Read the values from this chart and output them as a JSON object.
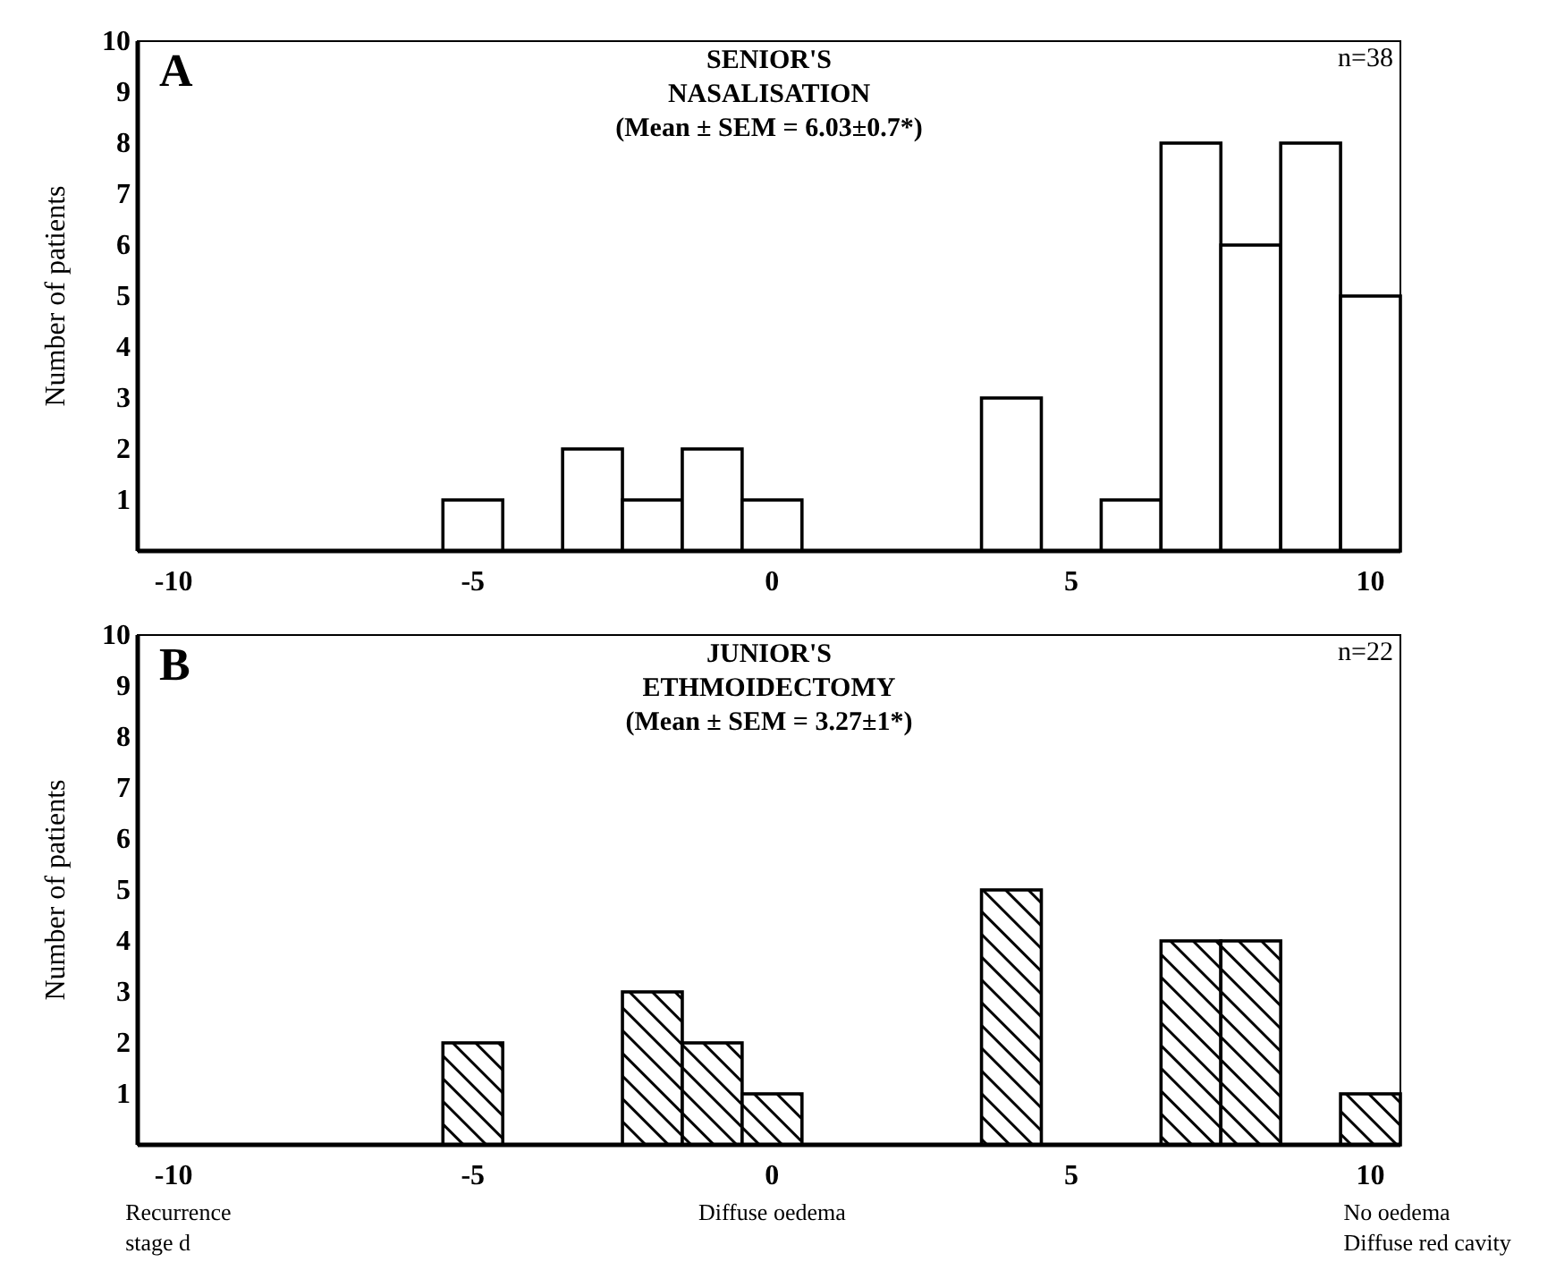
{
  "chart_data": [
    {
      "type": "histogram",
      "title": "SENIOR'S\nNASALISATION",
      "subtitle": "(Mean ± SEM = 6.03±0.7*)",
      "ylabel": "Number of patients",
      "bins": [
        -5.5,
        -4.5,
        -3.5,
        -2.5,
        -1.5,
        -0.5,
        0.5,
        1.5,
        2.5,
        3.5,
        4.5,
        5.5,
        6.5,
        7.5,
        8.5,
        9.5,
        10.5
      ],
      "values": [
        1,
        0,
        2,
        1,
        2,
        1,
        0,
        0,
        0,
        3,
        0,
        1,
        8,
        6,
        8,
        5
      ],
      "color": "#ffffff",
      "xlim": [
        -10.6,
        10.5
      ],
      "ylim": [
        0,
        10
      ],
      "xticks": [
        -10,
        -5,
        0,
        5,
        10
      ],
      "yticks": [
        1,
        2,
        3,
        4,
        5,
        6,
        7,
        8,
        9,
        10
      ],
      "annotations": [
        "A",
        "n=38"
      ]
    },
    {
      "type": "histogram",
      "title": "JUNIOR'S\nETHMOIDECTOMY",
      "subtitle": "(Mean ± SEM = 3.27±1*)",
      "ylabel": "Number of patients",
      "bins": [
        -5.5,
        -4.5,
        -3.5,
        -2.5,
        -1.5,
        -0.5,
        0.5,
        1.5,
        2.5,
        3.5,
        4.5,
        5.5,
        6.5,
        7.5,
        8.5,
        9.5,
        10.5
      ],
      "values": [
        2,
        0,
        0,
        3,
        2,
        1,
        0,
        0,
        0,
        5,
        0,
        0,
        4,
        4,
        0,
        1
      ],
      "color": "#000000",
      "xlim": [
        -10.6,
        10.5
      ],
      "ylim": [
        0,
        10
      ],
      "xticks": [
        -10,
        -5,
        0,
        5,
        10
      ],
      "yticks": [
        1,
        2,
        3,
        4,
        5,
        6,
        7,
        8,
        9,
        10
      ],
      "annotations": [
        "B",
        "n=22",
        "Recurrence\nstage d",
        "Diffuse oedema",
        "No oedema\nDiffuse red cavity"
      ]
    }
  ]
}
